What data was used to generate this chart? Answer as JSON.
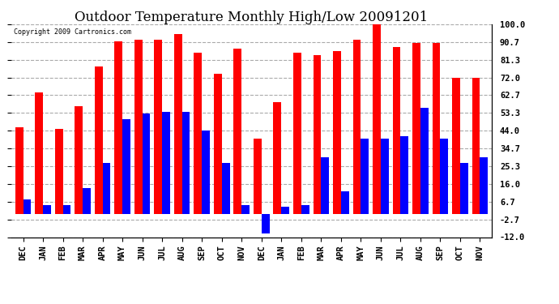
{
  "title": "Outdoor Temperature Monthly High/Low 20091201",
  "copyright": "Copyright 2009 Cartronics.com",
  "months": [
    "DEC",
    "JAN",
    "FEB",
    "MAR",
    "APR",
    "MAY",
    "JUN",
    "JUL",
    "AUG",
    "SEP",
    "OCT",
    "NOV",
    "DEC",
    "JAN",
    "FEB",
    "MAR",
    "APR",
    "MAY",
    "JUN",
    "JUL",
    "AUG",
    "SEP",
    "OCT",
    "NOV"
  ],
  "highs": [
    46,
    64,
    45,
    57,
    78,
    91,
    92,
    92,
    95,
    85,
    74,
    87,
    40,
    59,
    85,
    84,
    86,
    92,
    100,
    88,
    90,
    90,
    72,
    72
  ],
  "lows": [
    8,
    5,
    5,
    14,
    27,
    50,
    53,
    54,
    54,
    44,
    27,
    5,
    -10,
    4,
    5,
    30,
    12,
    40,
    40,
    41,
    56,
    40,
    27,
    30
  ],
  "yticks": [
    -12.0,
    -2.7,
    6.7,
    16.0,
    25.3,
    34.7,
    44.0,
    53.3,
    62.7,
    72.0,
    81.3,
    90.7,
    100.0
  ],
  "ymin": -12.0,
  "ymax": 100.0,
  "bar_width": 0.4,
  "high_color": "#ff0000",
  "low_color": "#0000ff",
  "bg_color": "#ffffff",
  "grid_color": "#aaaaaa",
  "title_fontsize": 12,
  "tick_fontsize": 7.5
}
